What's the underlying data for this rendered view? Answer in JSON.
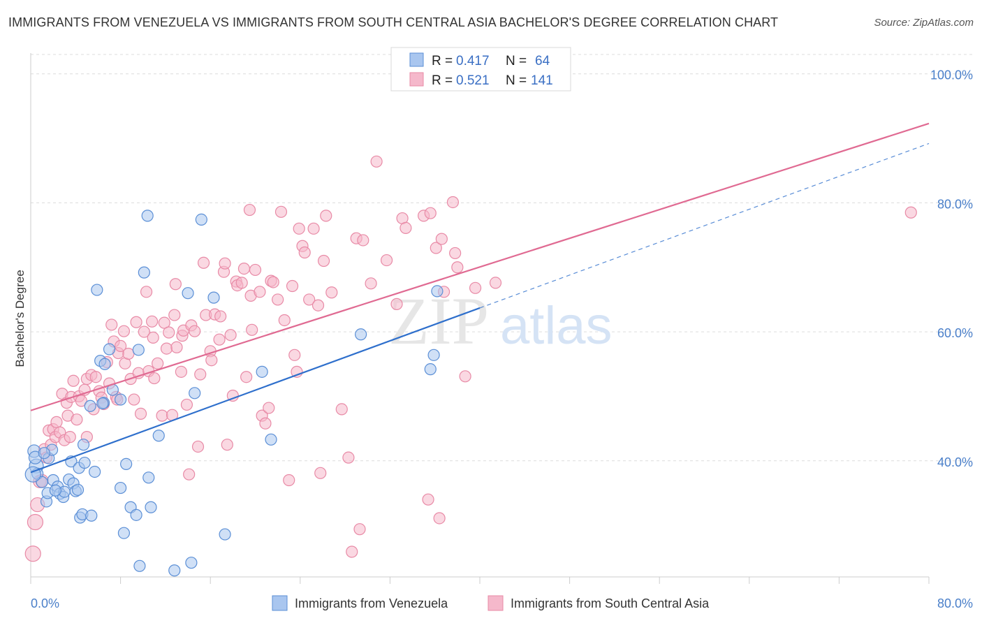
{
  "title": "IMMIGRANTS FROM VENEZUELA VS IMMIGRANTS FROM SOUTH CENTRAL ASIA BACHELOR'S DEGREE CORRELATION CHART",
  "source": "Source: ZipAtlas.com",
  "watermark": {
    "zip": "ZIP",
    "atlas": "atlas"
  },
  "colors": {
    "blue": "#5b8fd6",
    "blue_fill": "#a9c6ef",
    "blue_line": "#2e6fcc",
    "pink": "#e88aa6",
    "pink_fill": "#f5b8cb",
    "pink_line": "#e06a92",
    "grid": "#dcdcdc",
    "axis_text": "#4a7fc9"
  },
  "legend": {
    "rows": [
      {
        "r_label": "R =",
        "r_value": "0.417",
        "n_label": "N =",
        "n_value": "64"
      },
      {
        "r_label": "R =",
        "r_value": "0.521",
        "n_label": "N =",
        "n_value": "141"
      }
    ]
  },
  "chart_data": {
    "type": "scatter",
    "title": "IMMIGRANTS FROM VENEZUELA VS IMMIGRANTS FROM SOUTH CENTRAL ASIA BACHELOR'S DEGREE CORRELATION CHART",
    "xlabel": "",
    "ylabel": "Bachelor's Degree",
    "xlim": [
      0,
      80
    ],
    "ylim": [
      22,
      103
    ],
    "y_ticks": [
      40,
      60,
      80,
      100
    ],
    "y_tick_labels": [
      "40.0%",
      "60.0%",
      "80.0%",
      "100.0%"
    ],
    "x_tick_labels": [
      "0.0%",
      "80.0%"
    ],
    "series": [
      {
        "name": "Immigrants from Venezuela",
        "color": "blue",
        "r": 0.417,
        "n": 64,
        "trend": {
          "x0": 0,
          "y0": 38.2,
          "x1": 40,
          "y1": 63.7,
          "dash_to_x": 80,
          "dash_to_y": 89.2
        },
        "points": [
          [
            0.3,
            41.5,
            9
          ],
          [
            0.5,
            39.2,
            10
          ],
          [
            0.6,
            38,
            8
          ],
          [
            1,
            36.7,
            8
          ],
          [
            1.4,
            33.7,
            8
          ],
          [
            1.5,
            35,
            8
          ],
          [
            1.6,
            40.4,
            8
          ],
          [
            1.9,
            41.7,
            8
          ],
          [
            2,
            37,
            8
          ],
          [
            2.4,
            36,
            8
          ],
          [
            2.6,
            34.9,
            8
          ],
          [
            2.9,
            34.4,
            8
          ],
          [
            3,
            35.2,
            8
          ],
          [
            3.4,
            37.1,
            8
          ],
          [
            3.6,
            39.9,
            8
          ],
          [
            3.8,
            36.5,
            8
          ],
          [
            4,
            35.3,
            8
          ],
          [
            4.2,
            35.5,
            8
          ],
          [
            4.3,
            38.9,
            8
          ],
          [
            4.4,
            31.2,
            8
          ],
          [
            4.6,
            31.7,
            8
          ],
          [
            4.7,
            42.5,
            8
          ],
          [
            4.8,
            39.7,
            8
          ],
          [
            5.4,
            31.5,
            8
          ],
          [
            5.3,
            48.5,
            8
          ],
          [
            5.7,
            38.3,
            8
          ],
          [
            5.9,
            66.5,
            8
          ],
          [
            6.2,
            55.5,
            8
          ],
          [
            6.5,
            49,
            8
          ],
          [
            6.6,
            55,
            8
          ],
          [
            7,
            57.3,
            8
          ],
          [
            7.3,
            51,
            8
          ],
          [
            8,
            49.5,
            8
          ],
          [
            8,
            35.8,
            8
          ],
          [
            8.3,
            28.8,
            8
          ],
          [
            8.5,
            39.5,
            8
          ],
          [
            8.9,
            32.8,
            8
          ],
          [
            9.4,
            31.6,
            8
          ],
          [
            9.6,
            57.2,
            8
          ],
          [
            9.7,
            23.7,
            8
          ],
          [
            10.1,
            69.2,
            8
          ],
          [
            10.4,
            78,
            8
          ],
          [
            10.5,
            37.4,
            8
          ],
          [
            10.7,
            32.8,
            8
          ],
          [
            11.4,
            43.9,
            8
          ],
          [
            12.8,
            23,
            8
          ],
          [
            14,
            66,
            8
          ],
          [
            14.3,
            24.2,
            8
          ],
          [
            14.6,
            50.5,
            8
          ],
          [
            15.2,
            77.4,
            8
          ],
          [
            16.3,
            65.3,
            8
          ],
          [
            17.3,
            28.6,
            8
          ],
          [
            20.6,
            53.8,
            8
          ],
          [
            21.4,
            43.3,
            8
          ],
          [
            29.4,
            59.6,
            8
          ],
          [
            35.6,
            54.2,
            8
          ],
          [
            35.9,
            56.4,
            8
          ],
          [
            36.2,
            66.3,
            8
          ],
          [
            0.2,
            37.9,
            11
          ],
          [
            0.4,
            40.5,
            9
          ],
          [
            1.2,
            41.2,
            8
          ],
          [
            2.2,
            35.4,
            8
          ],
          [
            6.4,
            48.9,
            8
          ],
          [
            12.2,
            29.5,
            0
          ]
        ]
      },
      {
        "name": "Immigrants from South Central Asia",
        "color": "pink",
        "r": 0.521,
        "n": 141,
        "trend": {
          "x0": 0,
          "y0": 47.8,
          "x1": 80,
          "y1": 92.3
        },
        "points": [
          [
            0.2,
            25.6,
            11
          ],
          [
            0.4,
            30.5,
            11
          ],
          [
            0.6,
            33.2,
            10
          ],
          [
            0.8,
            36.8,
            9
          ],
          [
            1,
            36.9,
            9
          ],
          [
            1.2,
            41.8,
            8
          ],
          [
            1.4,
            40.5,
            8
          ],
          [
            1.6,
            44.7,
            8
          ],
          [
            1.8,
            42.5,
            8
          ],
          [
            2,
            44.9,
            8
          ],
          [
            2.2,
            43.7,
            8
          ],
          [
            2.3,
            46,
            8
          ],
          [
            2.6,
            44.4,
            8
          ],
          [
            2.8,
            50.4,
            8
          ],
          [
            3,
            43.2,
            8
          ],
          [
            3.2,
            49,
            8
          ],
          [
            3.3,
            47,
            8
          ],
          [
            3.5,
            43.7,
            8
          ],
          [
            3.6,
            49.9,
            8
          ],
          [
            3.8,
            52.4,
            8
          ],
          [
            4.1,
            46.4,
            8
          ],
          [
            4.3,
            50,
            8
          ],
          [
            4.5,
            49.3,
            8
          ],
          [
            4.8,
            51,
            8
          ],
          [
            5,
            43.7,
            8
          ],
          [
            5,
            52.7,
            8
          ],
          [
            5.4,
            53.3,
            8
          ],
          [
            5.6,
            48,
            8
          ],
          [
            5.8,
            53,
            8
          ],
          [
            6.1,
            50.8,
            8
          ],
          [
            6.3,
            49.8,
            8
          ],
          [
            6.5,
            48.8,
            8
          ],
          [
            6.8,
            55.3,
            8
          ],
          [
            7,
            52,
            8
          ],
          [
            7.2,
            61.1,
            8
          ],
          [
            7.4,
            58.5,
            8
          ],
          [
            7.6,
            49.9,
            8
          ],
          [
            7.7,
            49.5,
            8
          ],
          [
            7.8,
            56.7,
            8
          ],
          [
            8,
            57.8,
            8
          ],
          [
            8.3,
            60.1,
            8
          ],
          [
            8.4,
            55.1,
            8
          ],
          [
            8.7,
            56.6,
            8
          ],
          [
            8.9,
            52.7,
            8
          ],
          [
            9.2,
            49.5,
            8
          ],
          [
            9.4,
            61.5,
            8
          ],
          [
            9.6,
            53.6,
            8
          ],
          [
            9.8,
            47.3,
            8
          ],
          [
            10.1,
            60,
            8
          ],
          [
            10.3,
            66.2,
            8
          ],
          [
            10.5,
            53.9,
            8
          ],
          [
            10.8,
            61.6,
            8
          ],
          [
            10.9,
            59.1,
            8
          ],
          [
            11,
            52.8,
            8
          ],
          [
            11.3,
            55.1,
            8
          ],
          [
            11.7,
            47,
            8
          ],
          [
            11.9,
            61.4,
            8
          ],
          [
            12.1,
            57.4,
            8
          ],
          [
            12.3,
            59.9,
            8
          ],
          [
            12.6,
            47.1,
            8
          ],
          [
            12.8,
            62.6,
            8
          ],
          [
            12.9,
            67.4,
            8
          ],
          [
            13,
            57.6,
            8
          ],
          [
            13.4,
            53.8,
            8
          ],
          [
            13.5,
            59.4,
            8
          ],
          [
            13.6,
            60.2,
            8
          ],
          [
            13.9,
            48.7,
            8
          ],
          [
            14.1,
            37.9,
            8
          ],
          [
            14.3,
            61,
            8
          ],
          [
            14.6,
            60.1,
            8
          ],
          [
            14.9,
            42.2,
            8
          ],
          [
            15.1,
            53.4,
            8
          ],
          [
            15.4,
            70.7,
            8
          ],
          [
            15.6,
            62.6,
            8
          ],
          [
            16,
            57,
            8
          ],
          [
            16.1,
            55.6,
            8
          ],
          [
            16.4,
            62.7,
            8
          ],
          [
            16.8,
            58.8,
            8
          ],
          [
            16.9,
            62.4,
            8
          ],
          [
            17.2,
            69.3,
            8
          ],
          [
            17.3,
            70.6,
            8
          ],
          [
            17.5,
            42.5,
            8
          ],
          [
            17.8,
            59.5,
            8
          ],
          [
            18,
            50.1,
            8
          ],
          [
            18.3,
            67.8,
            8
          ],
          [
            18.4,
            67.2,
            8
          ],
          [
            18.8,
            67.6,
            8
          ],
          [
            19,
            69.8,
            8
          ],
          [
            19.2,
            53,
            8
          ],
          [
            19.5,
            78.9,
            8
          ],
          [
            19.6,
            65.6,
            8
          ],
          [
            19.7,
            60.3,
            8
          ],
          [
            20,
            69.6,
            8
          ],
          [
            20.4,
            66.2,
            8
          ],
          [
            20.6,
            47,
            8
          ],
          [
            20.9,
            45.8,
            8
          ],
          [
            21.2,
            48.2,
            8
          ],
          [
            21.4,
            67.9,
            8
          ],
          [
            21.6,
            67.7,
            8
          ],
          [
            22,
            65,
            8
          ],
          [
            22.3,
            78.6,
            8
          ],
          [
            22.6,
            61.8,
            8
          ],
          [
            23,
            37,
            8
          ],
          [
            23.3,
            67.1,
            8
          ],
          [
            23.5,
            56.4,
            8
          ],
          [
            23.7,
            53.8,
            8
          ],
          [
            23.9,
            76,
            8
          ],
          [
            24.2,
            73.3,
            8
          ],
          [
            24.4,
            72.3,
            8
          ],
          [
            24.8,
            65,
            8
          ],
          [
            25.2,
            76,
            8
          ],
          [
            25.6,
            64.1,
            8
          ],
          [
            25.8,
            38.1,
            8
          ],
          [
            26.1,
            71,
            8
          ],
          [
            26.3,
            78,
            8
          ],
          [
            26.8,
            66.1,
            8
          ],
          [
            27.7,
            48,
            8
          ],
          [
            28.3,
            40.5,
            8
          ],
          [
            28.6,
            25.9,
            8
          ],
          [
            29,
            74.5,
            8
          ],
          [
            29.3,
            29.4,
            8
          ],
          [
            29.6,
            74.2,
            8
          ],
          [
            30.3,
            67.5,
            8
          ],
          [
            30.8,
            86.4,
            8
          ],
          [
            31.7,
            71.1,
            8
          ],
          [
            32.6,
            64.3,
            8
          ],
          [
            33.1,
            77.6,
            8
          ],
          [
            33.4,
            76.1,
            8
          ],
          [
            35,
            78,
            8
          ],
          [
            35.4,
            34,
            8
          ],
          [
            35.6,
            78.4,
            8
          ],
          [
            36.1,
            73,
            8
          ],
          [
            36.4,
            31.1,
            8
          ],
          [
            36.6,
            74.4,
            8
          ],
          [
            36.8,
            66.2,
            8
          ],
          [
            37.6,
            80.1,
            8
          ],
          [
            37.8,
            72.2,
            8
          ],
          [
            38,
            70,
            8
          ],
          [
            38.7,
            53.1,
            8
          ],
          [
            39.6,
            66.8,
            8
          ],
          [
            41.4,
            67.6,
            8
          ],
          [
            78.4,
            78.5,
            8
          ],
          [
            36.9,
            68.9,
            0
          ]
        ]
      }
    ]
  },
  "bottom_legend": [
    {
      "label": "Immigrants from Venezuela"
    },
    {
      "label": "Immigrants from South Central Asia"
    }
  ]
}
